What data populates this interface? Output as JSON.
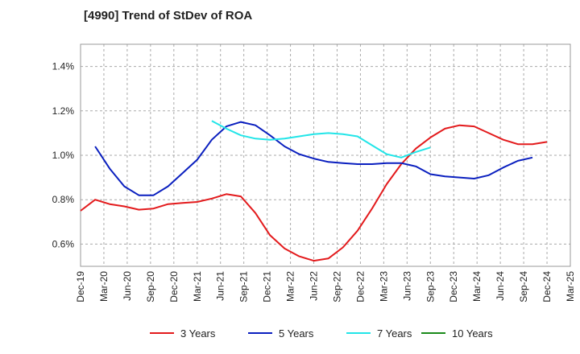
{
  "chart_data": {
    "type": "line",
    "title": "[4990]  Trend of StDev of ROA",
    "xlabel": "",
    "ylabel": "",
    "x_ticks": [
      "Dec-19",
      "Mar-20",
      "Jun-20",
      "Sep-20",
      "Dec-20",
      "Mar-21",
      "Jun-21",
      "Sep-21",
      "Dec-21",
      "Mar-22",
      "Jun-22",
      "Sep-22",
      "Dec-22",
      "Mar-23",
      "Jun-23",
      "Sep-23",
      "Dec-23",
      "Mar-24",
      "Jun-24",
      "Sep-24",
      "Dec-24",
      "Mar-25"
    ],
    "y_ticks": [
      "0.6%",
      "0.8%",
      "1.0%",
      "1.2%",
      "1.4%"
    ],
    "y_tick_values": [
      0.6,
      0.8,
      1.0,
      1.2,
      1.4
    ],
    "ylim": [
      0.5,
      1.5
    ],
    "grid": true,
    "legend_position": "bottom",
    "series": [
      {
        "name": "3 Years",
        "color": "#e31a1c",
        "points": [
          [
            0,
            0.75
          ],
          [
            1,
            0.8
          ],
          [
            2,
            0.78
          ],
          [
            3,
            0.77
          ],
          [
            4,
            0.755
          ],
          [
            5,
            0.76
          ],
          [
            6,
            0.78
          ],
          [
            7,
            0.785
          ],
          [
            8,
            0.79
          ],
          [
            9,
            0.805
          ],
          [
            10,
            0.825
          ],
          [
            11,
            0.815
          ],
          [
            12,
            0.74
          ],
          [
            13,
            0.64
          ],
          [
            14,
            0.58
          ],
          [
            15,
            0.545
          ],
          [
            16,
            0.525
          ],
          [
            17,
            0.535
          ],
          [
            18,
            0.585
          ],
          [
            19,
            0.66
          ],
          [
            20,
            0.76
          ],
          [
            21,
            0.87
          ],
          [
            22,
            0.96
          ],
          [
            23,
            1.03
          ],
          [
            24,
            1.08
          ],
          [
            25,
            1.12
          ],
          [
            26,
            1.135
          ],
          [
            27,
            1.13
          ],
          [
            28,
            1.1
          ],
          [
            29,
            1.07
          ],
          [
            30,
            1.05
          ],
          [
            31,
            1.05
          ],
          [
            32,
            1.06
          ]
        ]
      },
      {
        "name": "5 Years",
        "color": "#0a1fbf",
        "points": [
          [
            1,
            1.04
          ],
          [
            2,
            0.94
          ],
          [
            3,
            0.86
          ],
          [
            4,
            0.82
          ],
          [
            5,
            0.82
          ],
          [
            6,
            0.86
          ],
          [
            7,
            0.92
          ],
          [
            8,
            0.98
          ],
          [
            9,
            1.07
          ],
          [
            10,
            1.13
          ],
          [
            11,
            1.15
          ],
          [
            12,
            1.135
          ],
          [
            13,
            1.09
          ],
          [
            14,
            1.04
          ],
          [
            15,
            1.005
          ],
          [
            16,
            0.985
          ],
          [
            17,
            0.97
          ],
          [
            18,
            0.965
          ],
          [
            19,
            0.96
          ],
          [
            20,
            0.96
          ],
          [
            21,
            0.965
          ],
          [
            22,
            0.965
          ],
          [
            23,
            0.95
          ],
          [
            24,
            0.915
          ],
          [
            25,
            0.905
          ],
          [
            26,
            0.9
          ],
          [
            27,
            0.895
          ],
          [
            28,
            0.91
          ],
          [
            29,
            0.945
          ],
          [
            30,
            0.975
          ],
          [
            31,
            0.99
          ]
        ]
      },
      {
        "name": "7 Years",
        "color": "#22e5e8",
        "points": [
          [
            9,
            1.155
          ],
          [
            10,
            1.12
          ],
          [
            11,
            1.09
          ],
          [
            12,
            1.075
          ],
          [
            13,
            1.07
          ],
          [
            14,
            1.075
          ],
          [
            15,
            1.085
          ],
          [
            16,
            1.095
          ],
          [
            17,
            1.1
          ],
          [
            18,
            1.095
          ],
          [
            19,
            1.085
          ],
          [
            20,
            1.045
          ],
          [
            21,
            1.005
          ],
          [
            22,
            0.99
          ],
          [
            23,
            1.015
          ],
          [
            24,
            1.035
          ]
        ]
      },
      {
        "name": "10 Years",
        "color": "#1a8a1a",
        "points": []
      }
    ]
  }
}
